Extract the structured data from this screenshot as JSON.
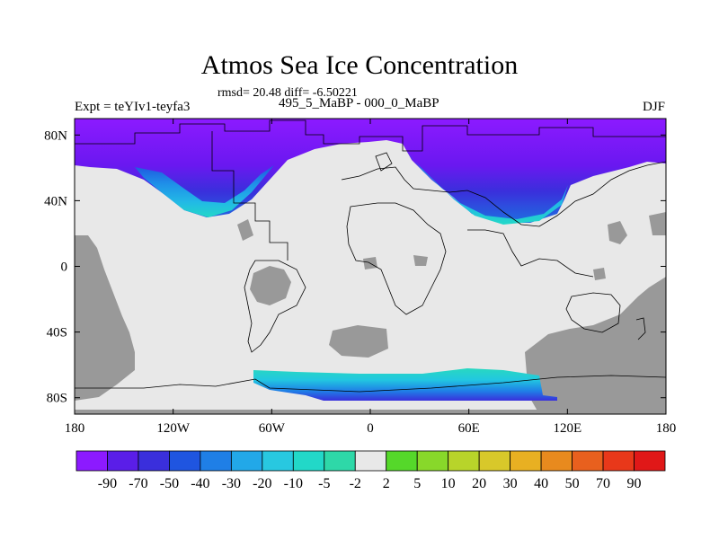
{
  "figure": {
    "title": "Atmos Sea Ice Concentration",
    "subtitle": "rmsd= 20.48 diff= -6.50221",
    "period_label": "495_5_MaBP - 000_0_MaBP",
    "left_label": "Expt = teYIv1-teyfa3",
    "season_label": "DJF"
  },
  "chart_data": {
    "type": "heatmap",
    "projection": "cylindrical equidistant",
    "x_range": [
      -180,
      180
    ],
    "y_range": [
      -90,
      90
    ],
    "x_ticks": [
      -180,
      -120,
      -60,
      0,
      60,
      120,
      180
    ],
    "x_tick_labels": [
      "180",
      "120W",
      "60W",
      "0",
      "60E",
      "120E",
      "180"
    ],
    "y_ticks": [
      80,
      40,
      0,
      -40,
      -80
    ],
    "y_tick_labels": [
      "80N",
      "40N",
      "0",
      "40S",
      "80S"
    ],
    "fields": [
      {
        "name": "arctic_ice_loss",
        "range": "90N to ~55N",
        "values": "-90 to -5"
      },
      {
        "name": "pacific_tongue",
        "centre_lon": -110,
        "southern_edge_lat": 30,
        "values": "-20 to -5"
      },
      {
        "name": "atlantic_tongue",
        "centre_lon": 100,
        "southern_edge_lat": 25,
        "values": "-20 to -5"
      },
      {
        "name": "southern_ocean",
        "range": "~60S to 82S",
        "lon": [
          -70,
          120
        ],
        "values": "-70 to -2"
      }
    ],
    "missing_color": "#999999",
    "neutral_color": "#e8e8e8",
    "colorbar": {
      "levels": [
        "-90",
        "-70",
        "-50",
        "-40",
        "-30",
        "-20",
        "-10",
        "-5",
        "-2",
        "2",
        "5",
        "10",
        "20",
        "30",
        "40",
        "50",
        "70",
        "90"
      ],
      "colors": [
        "#8c1aff",
        "#5a1ee8",
        "#3a2fdc",
        "#1f55e0",
        "#1f7fe6",
        "#22a8e8",
        "#28c8e0",
        "#22d8c8",
        "#2ed8a8",
        "#e8e8e8",
        "#55d82a",
        "#88d82a",
        "#b8d42a",
        "#d8c82a",
        "#e8b022",
        "#e88a1e",
        "#e8601e",
        "#e8381a",
        "#e01818"
      ]
    }
  }
}
